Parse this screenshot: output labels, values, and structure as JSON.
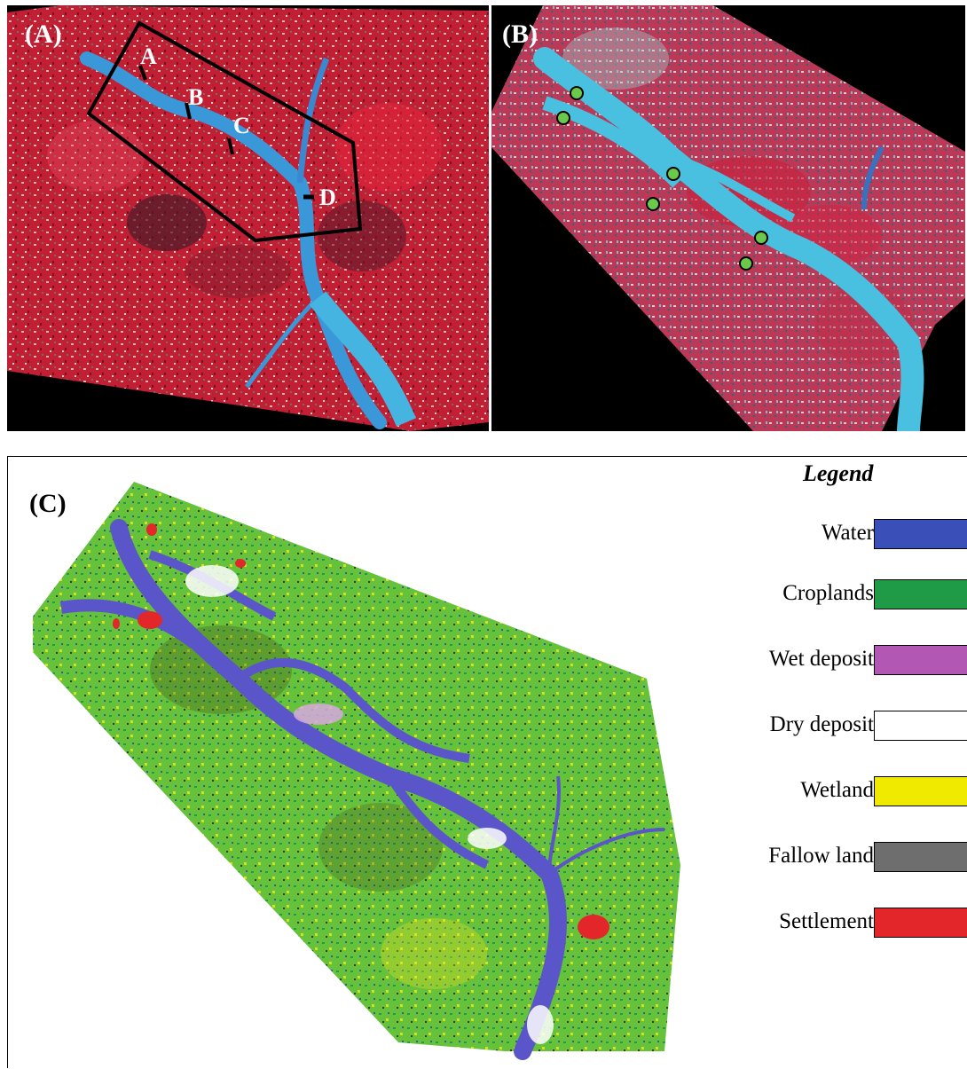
{
  "panels": {
    "a": {
      "label": "(A)"
    },
    "b": {
      "label": "(B)"
    },
    "c": {
      "label": "(C)"
    }
  },
  "sites": [
    "A",
    "B",
    "C",
    "D"
  ],
  "legend": {
    "title": "Legend",
    "items": [
      {
        "label": "Water",
        "color": "#3a4fb8"
      },
      {
        "label": "Croplands",
        "color": "#1f9a47"
      },
      {
        "label": "Wet deposit",
        "color": "#b257b4"
      },
      {
        "label": "Dry deposit",
        "color": "#ffffff"
      },
      {
        "label": "Wetland",
        "color": "#f0ea00"
      },
      {
        "label": "Fallow land",
        "color": "#6e6e6e"
      },
      {
        "label": "Settlement",
        "color": "#e2262a"
      }
    ]
  },
  "colors": {
    "fcc_land": "#c8203a",
    "fcc_river": "#3aa0d8",
    "class_river": "#5a55c8",
    "class_crop": "#66c23a"
  }
}
